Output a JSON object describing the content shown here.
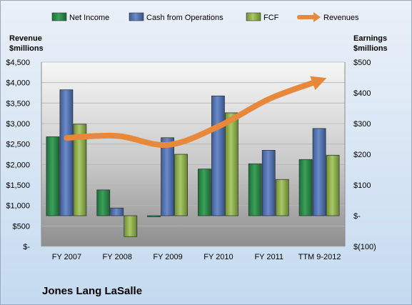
{
  "company_name": "Jones Lang LaSalle",
  "chart_data": {
    "type": "bar",
    "categories": [
      "FY 2007",
      "FY 2008",
      "FY 2009",
      "FY 2010",
      "FY 2011",
      "TTM 9-2012"
    ],
    "series": [
      {
        "name": "Net Income",
        "axis": "right",
        "color": "#2e8b4a",
        "values": [
          257,
          84,
          -3,
          152,
          169,
          183
        ]
      },
      {
        "name": "Cash from Operations",
        "axis": "right",
        "color": "#4f6fae",
        "values": [
          410,
          25,
          254,
          390,
          213,
          284
        ]
      },
      {
        "name": "FCF",
        "axis": "right",
        "color": "#8fb04a",
        "values": [
          298,
          -68,
          200,
          335,
          118,
          197
        ]
      },
      {
        "name": "Revenues",
        "type": "line",
        "axis": "left",
        "color": "#e8883a",
        "values": [
          2650,
          2700,
          2480,
          2930,
          3600,
          4050
        ]
      }
    ],
    "left_axis": {
      "title_lines": [
        "Revenue",
        "$millions"
      ],
      "min": 0,
      "max": 4500,
      "step": 500,
      "tick_labels": [
        "$-",
        "$500",
        "$1,000",
        "$1,500",
        "$2,000",
        "$2,500",
        "$3,000",
        "$3,500",
        "$4,000",
        "$4,500"
      ]
    },
    "right_axis": {
      "title_lines": [
        "Earnings",
        "$millions"
      ],
      "min": -100,
      "max": 500,
      "step": 100,
      "tick_labels": [
        "$(100)",
        "$-",
        "$100",
        "$200",
        "$300",
        "$400",
        "$500"
      ]
    },
    "legend_position": "top",
    "grid": true
  }
}
